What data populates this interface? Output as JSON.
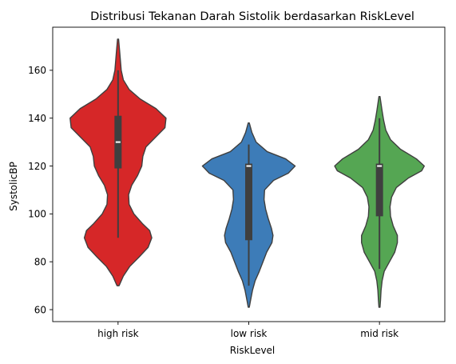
{
  "chart_data": {
    "type": "violin",
    "title": "Distribusi Tekanan Darah Sistolik berdasarkan RiskLevel",
    "xlabel": "RiskLevel",
    "ylabel": "SystolicBP",
    "ylim": [
      55,
      178
    ],
    "yticks": [
      60,
      80,
      100,
      120,
      140,
      160
    ],
    "grid": false,
    "categories": [
      "high risk",
      "low risk",
      "mid risk"
    ],
    "series": [
      {
        "category": "high risk",
        "color": "#d62728",
        "min": 90,
        "q1": 119,
        "median": 130,
        "q3": 141,
        "max": 160,
        "extent": [
          70,
          173
        ],
        "density": [
          [
            70,
            0.02
          ],
          [
            74,
            0.1
          ],
          [
            78,
            0.22
          ],
          [
            82,
            0.4
          ],
          [
            86,
            0.57
          ],
          [
            90,
            0.64
          ],
          [
            93,
            0.6
          ],
          [
            96,
            0.46
          ],
          [
            100,
            0.3
          ],
          [
            104,
            0.21
          ],
          [
            108,
            0.2
          ],
          [
            112,
            0.26
          ],
          [
            116,
            0.37
          ],
          [
            120,
            0.45
          ],
          [
            124,
            0.47
          ],
          [
            128,
            0.53
          ],
          [
            132,
            0.71
          ],
          [
            136,
            0.89
          ],
          [
            140,
            0.91
          ],
          [
            144,
            0.72
          ],
          [
            148,
            0.42
          ],
          [
            152,
            0.21
          ],
          [
            156,
            0.1
          ],
          [
            160,
            0.06
          ],
          [
            164,
            0.045
          ],
          [
            168,
            0.03
          ],
          [
            173,
            0.01
          ]
        ]
      },
      {
        "category": "low risk",
        "color": "#3d7cb8",
        "min": 70,
        "q1": 89,
        "median": 120,
        "q3": 121,
        "max": 129,
        "extent": [
          61,
          138
        ],
        "density": [
          [
            61,
            0.01
          ],
          [
            64,
            0.035
          ],
          [
            68,
            0.07
          ],
          [
            72,
            0.12
          ],
          [
            76,
            0.2
          ],
          [
            80,
            0.27
          ],
          [
            84,
            0.34
          ],
          [
            88,
            0.44
          ],
          [
            91,
            0.46
          ],
          [
            94,
            0.43
          ],
          [
            98,
            0.37
          ],
          [
            102,
            0.32
          ],
          [
            106,
            0.29
          ],
          [
            110,
            0.3
          ],
          [
            114,
            0.47
          ],
          [
            117,
            0.75
          ],
          [
            120,
            0.88
          ],
          [
            123,
            0.7
          ],
          [
            126,
            0.35
          ],
          [
            130,
            0.14
          ],
          [
            134,
            0.06
          ],
          [
            138,
            0.01
          ]
        ]
      },
      {
        "category": "mid risk",
        "color": "#55a653",
        "min": 77,
        "q1": 99,
        "median": 120,
        "q3": 121,
        "max": 140,
        "extent": [
          61,
          149
        ],
        "density": [
          [
            61,
            0.01
          ],
          [
            64,
            0.02
          ],
          [
            68,
            0.03
          ],
          [
            72,
            0.05
          ],
          [
            76,
            0.09
          ],
          [
            80,
            0.19
          ],
          [
            84,
            0.29
          ],
          [
            88,
            0.34
          ],
          [
            91,
            0.34
          ],
          [
            95,
            0.26
          ],
          [
            99,
            0.21
          ],
          [
            103,
            0.2
          ],
          [
            107,
            0.23
          ],
          [
            111,
            0.32
          ],
          [
            115,
            0.55
          ],
          [
            118,
            0.8
          ],
          [
            120,
            0.85
          ],
          [
            123,
            0.7
          ],
          [
            127,
            0.4
          ],
          [
            131,
            0.21
          ],
          [
            135,
            0.12
          ],
          [
            139,
            0.08
          ],
          [
            143,
            0.05
          ],
          [
            146,
            0.03
          ],
          [
            149,
            0.01
          ]
        ]
      }
    ]
  }
}
